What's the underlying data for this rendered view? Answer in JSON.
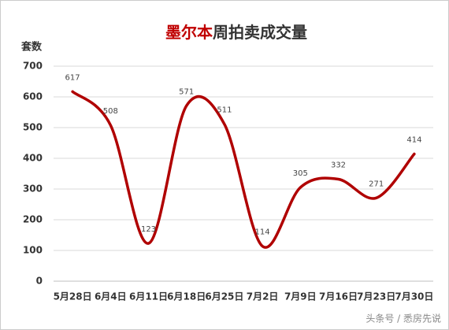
{
  "chart_data": {
    "type": "line",
    "title": [
      "墨尔本",
      "周拍卖成交量"
    ],
    "title_colors": [
      "#c00000",
      "#333333"
    ],
    "y_label": "套数",
    "categories": [
      "5月28日",
      "6月4日",
      "6月11日",
      "6月18日",
      "6月25日",
      "7月2日",
      "7月9日",
      "7月16日",
      "7月23日",
      "7月30日"
    ],
    "values": [
      617,
      508,
      123,
      571,
      511,
      114,
      305,
      332,
      271,
      414
    ],
    "color": "#b00000",
    "smooth": true,
    "ylim": [
      0,
      700
    ],
    "yticks": [
      0,
      100,
      200,
      300,
      400,
      500,
      600,
      700
    ],
    "grid": true,
    "watermark": "头条号 / 悉房先说"
  }
}
